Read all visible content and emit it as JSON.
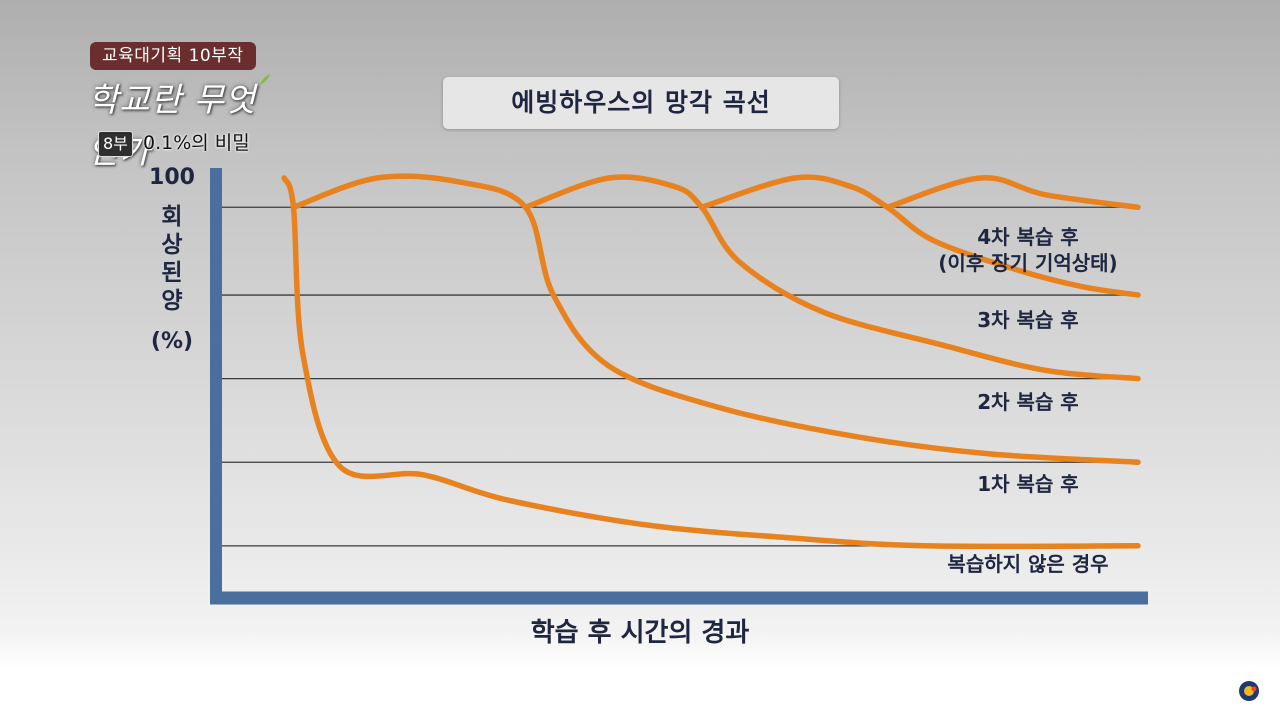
{
  "overlay": {
    "series_badge": "교육대기획 10부작",
    "program_logo": "학교란 무엇인가",
    "episode_number": "8부",
    "episode_title": "0.1%의 비밀"
  },
  "colors": {
    "curve": "#e8821e",
    "axis": "#4a6f9e",
    "gridline": "#3a3a3a",
    "text": "#1f2640",
    "badge": "#6a2e2e"
  },
  "chart_data": {
    "type": "line",
    "title": "에빙하우스의 망각 곡선",
    "xlabel": "학습 후 시간의 경과",
    "ylabel_lines": [
      "회",
      "상",
      "된",
      "양",
      "(%)"
    ],
    "y_tick_label": "100",
    "ylim": [
      0,
      100
    ],
    "xlim": [
      0,
      100
    ],
    "grid": true,
    "gridline_levels": [
      93,
      72,
      52,
      32,
      12
    ],
    "series": [
      {
        "name": "복습하지 않은 경우",
        "points": [
          [
            8,
            100
          ],
          [
            9,
            93
          ],
          [
            10,
            58
          ],
          [
            14,
            31
          ],
          [
            23,
            29
          ],
          [
            32,
            23
          ],
          [
            47,
            17
          ],
          [
            62,
            14
          ],
          [
            77,
            12
          ],
          [
            100,
            12
          ]
        ]
      },
      {
        "name": "1차 복습 후",
        "points": [
          [
            9,
            93
          ],
          [
            18,
            100
          ],
          [
            27,
            99
          ],
          [
            34,
            93
          ],
          [
            37,
            72
          ],
          [
            43,
            55
          ],
          [
            55,
            45
          ],
          [
            70,
            38
          ],
          [
            84,
            34
          ],
          [
            100,
            32
          ]
        ]
      },
      {
        "name": "2차 복습 후",
        "points": [
          [
            34,
            93
          ],
          [
            43,
            100
          ],
          [
            50,
            98
          ],
          [
            53,
            93
          ],
          [
            57,
            80
          ],
          [
            66,
            68
          ],
          [
            79,
            60
          ],
          [
            90,
            54
          ],
          [
            100,
            52
          ]
        ]
      },
      {
        "name": "3차 복습 후",
        "points": [
          [
            53,
            93
          ],
          [
            63,
            100
          ],
          [
            69,
            98
          ],
          [
            73,
            93
          ],
          [
            78,
            85
          ],
          [
            87,
            78
          ],
          [
            94,
            74
          ],
          [
            100,
            72
          ]
        ]
      },
      {
        "name": "4차 복습 후",
        "sublabel": "(이후 장기 기억상태)",
        "points": [
          [
            73,
            93
          ],
          [
            83,
            100
          ],
          [
            90,
            96
          ],
          [
            100,
            93
          ]
        ]
      }
    ]
  }
}
